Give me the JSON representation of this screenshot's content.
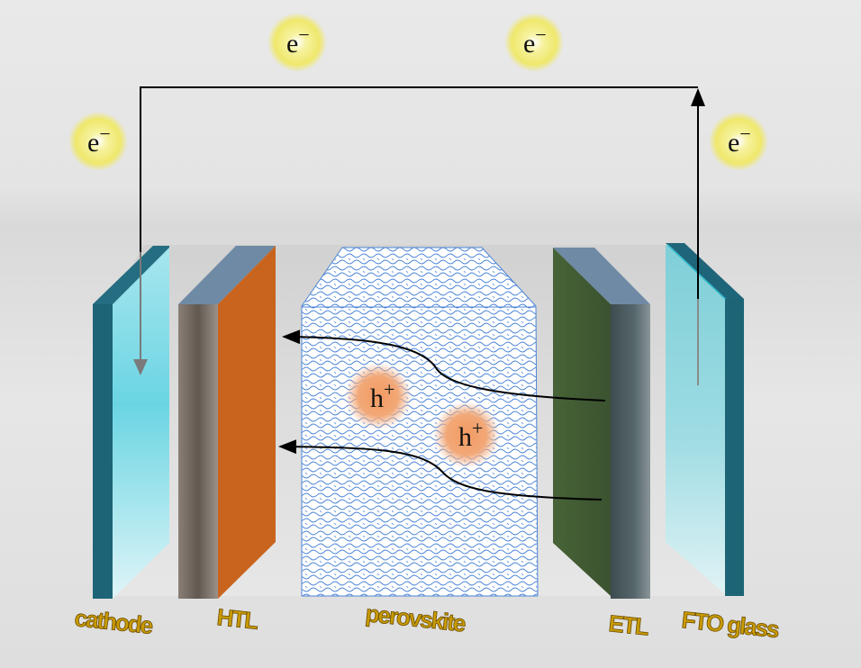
{
  "electrons": [
    {
      "label": "e",
      "sign": "−"
    },
    {
      "label": "e",
      "sign": "−"
    },
    {
      "label": "e",
      "sign": "−"
    },
    {
      "label": "e",
      "sign": "−"
    }
  ],
  "holes": [
    {
      "label": "h",
      "sign": "+"
    },
    {
      "label": "h",
      "sign": "+"
    }
  ],
  "layers": {
    "cathode": "cathode",
    "htl": "HTL",
    "perovskite": "perovskite",
    "etl": "ETL",
    "fto": "FTO glass"
  },
  "colors": {
    "glass": "#7fd8e3",
    "glass_edge": "#1b6376",
    "htl": "#c9641f",
    "htl_side": "#6e645c",
    "perovskite_pattern": "#4d86d6",
    "etl": "#3f5a30",
    "etl_side": "#556468",
    "electron_glow": "#f1ec7a",
    "hole_glow": "#f0a26e",
    "label": "#c99a00"
  }
}
